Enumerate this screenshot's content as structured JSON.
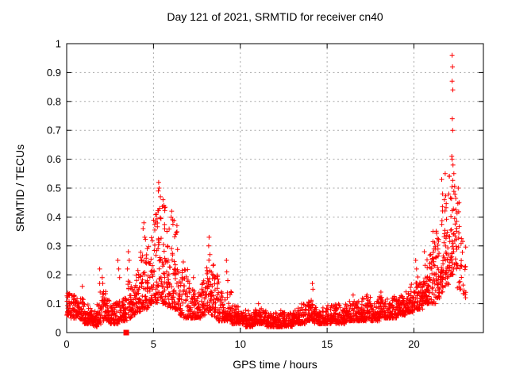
{
  "figure": {
    "background": "#ffffff",
    "border_color": "#000000",
    "grid_color": "#a8a8a8",
    "text_color": "#000000"
  },
  "chart_data": {
    "type": "scatter",
    "title": "Day 121 of 2021, SRMTID for receiver cn40",
    "xlabel": "GPS time / hours",
    "ylabel": "SRMTID / TECUs",
    "xlim": [
      0,
      24
    ],
    "ylim": [
      0,
      1
    ],
    "x_ticks": [
      0,
      5,
      10,
      15,
      20
    ],
    "y_ticks": [
      0,
      0.1,
      0.2,
      0.3,
      0.4,
      0.5,
      0.6,
      0.7,
      0.8,
      0.9,
      1
    ],
    "grid": true,
    "legend": "none",
    "marker": "plus",
    "marker_color": "#ff0000",
    "marker_half_size": 3,
    "seed": 7,
    "band_bins": {
      "comment": "dense scatter band read from plot; each bin = [value_low, value_high, point_count] over bin_hours step",
      "bin_hours": 0.25,
      "start_hour": 0,
      "bins": [
        [
          0.06,
          0.14,
          30
        ],
        [
          0.05,
          0.13,
          30
        ],
        [
          0.05,
          0.12,
          30
        ],
        [
          0.04,
          0.12,
          30
        ],
        [
          0.03,
          0.1,
          30
        ],
        [
          0.03,
          0.09,
          30
        ],
        [
          0.02,
          0.08,
          30
        ],
        [
          0.03,
          0.1,
          30
        ],
        [
          0.04,
          0.15,
          30
        ],
        [
          0.04,
          0.12,
          30
        ],
        [
          0.03,
          0.1,
          30
        ],
        [
          0.03,
          0.11,
          30
        ],
        [
          0.04,
          0.12,
          30
        ],
        [
          0.04,
          0.12,
          30
        ],
        [
          0.05,
          0.18,
          30
        ],
        [
          0.06,
          0.18,
          30
        ],
        [
          0.07,
          0.22,
          32
        ],
        [
          0.08,
          0.3,
          32
        ],
        [
          0.08,
          0.33,
          32
        ],
        [
          0.1,
          0.36,
          32
        ],
        [
          0.1,
          0.42,
          34
        ],
        [
          0.12,
          0.47,
          34
        ],
        [
          0.1,
          0.44,
          34
        ],
        [
          0.08,
          0.38,
          32
        ],
        [
          0.08,
          0.4,
          32
        ],
        [
          0.08,
          0.35,
          32
        ],
        [
          0.06,
          0.28,
          30
        ],
        [
          0.05,
          0.22,
          30
        ],
        [
          0.05,
          0.17,
          30
        ],
        [
          0.05,
          0.15,
          30
        ],
        [
          0.05,
          0.14,
          30
        ],
        [
          0.06,
          0.18,
          30
        ],
        [
          0.07,
          0.27,
          32
        ],
        [
          0.06,
          0.25,
          32
        ],
        [
          0.05,
          0.2,
          30
        ],
        [
          0.04,
          0.15,
          30
        ],
        [
          0.04,
          0.12,
          30
        ],
        [
          0.04,
          0.15,
          30
        ],
        [
          0.03,
          0.1,
          30
        ],
        [
          0.03,
          0.09,
          30
        ],
        [
          0.03,
          0.08,
          30
        ],
        [
          0.02,
          0.08,
          30
        ],
        [
          0.02,
          0.07,
          30
        ],
        [
          0.03,
          0.08,
          30
        ],
        [
          0.03,
          0.09,
          30
        ],
        [
          0.03,
          0.08,
          30
        ],
        [
          0.02,
          0.07,
          30
        ],
        [
          0.02,
          0.07,
          30
        ],
        [
          0.02,
          0.07,
          30
        ],
        [
          0.02,
          0.08,
          30
        ],
        [
          0.02,
          0.07,
          30
        ],
        [
          0.02,
          0.07,
          30
        ],
        [
          0.03,
          0.08,
          30
        ],
        [
          0.03,
          0.09,
          30
        ],
        [
          0.03,
          0.1,
          30
        ],
        [
          0.04,
          0.11,
          30
        ],
        [
          0.04,
          0.12,
          30
        ],
        [
          0.03,
          0.1,
          30
        ],
        [
          0.03,
          0.09,
          30
        ],
        [
          0.03,
          0.09,
          30
        ],
        [
          0.03,
          0.1,
          30
        ],
        [
          0.04,
          0.11,
          30
        ],
        [
          0.03,
          0.1,
          30
        ],
        [
          0.03,
          0.09,
          30
        ],
        [
          0.04,
          0.1,
          30
        ],
        [
          0.04,
          0.11,
          30
        ],
        [
          0.04,
          0.12,
          30
        ],
        [
          0.04,
          0.11,
          30
        ],
        [
          0.04,
          0.12,
          30
        ],
        [
          0.05,
          0.13,
          30
        ],
        [
          0.04,
          0.11,
          30
        ],
        [
          0.04,
          0.11,
          30
        ],
        [
          0.05,
          0.13,
          30
        ],
        [
          0.05,
          0.12,
          30
        ],
        [
          0.05,
          0.12,
          30
        ],
        [
          0.05,
          0.13,
          30
        ],
        [
          0.06,
          0.13,
          30
        ],
        [
          0.06,
          0.14,
          30
        ],
        [
          0.07,
          0.15,
          30
        ],
        [
          0.07,
          0.17,
          30
        ],
        [
          0.08,
          0.2,
          32
        ],
        [
          0.08,
          0.2,
          32
        ],
        [
          0.1,
          0.25,
          32
        ],
        [
          0.1,
          0.28,
          32
        ],
        [
          0.1,
          0.32,
          34
        ],
        [
          0.12,
          0.36,
          34
        ],
        [
          0.14,
          0.44,
          34
        ],
        [
          0.16,
          0.5,
          34
        ],
        [
          0.2,
          0.55,
          34
        ],
        [
          0.22,
          0.52,
          30
        ],
        [
          0.15,
          0.45,
          20
        ],
        [
          0.12,
          0.35,
          12
        ]
      ]
    },
    "notable_points": [
      [
        0.9,
        0.16
      ],
      [
        1.9,
        0.22
      ],
      [
        1.9,
        0.17
      ],
      [
        1.93,
        0.14
      ],
      [
        2.05,
        0.19
      ],
      [
        2.08,
        0.17
      ],
      [
        2.95,
        0.25
      ],
      [
        3.0,
        0.22
      ],
      [
        3.05,
        0.19
      ],
      [
        3.5,
        0.22
      ],
      [
        3.55,
        0.28
      ],
      [
        3.6,
        0.25
      ],
      [
        4.4,
        0.36
      ],
      [
        4.45,
        0.38
      ],
      [
        4.5,
        0.33
      ],
      [
        5.28,
        0.49
      ],
      [
        5.3,
        0.52
      ],
      [
        5.32,
        0.5
      ],
      [
        5.4,
        0.47
      ],
      [
        5.55,
        0.46
      ],
      [
        5.6,
        0.44
      ],
      [
        6.05,
        0.42
      ],
      [
        6.1,
        0.39
      ],
      [
        6.35,
        0.37
      ],
      [
        7.3,
        0.19
      ],
      [
        8.18,
        0.3
      ],
      [
        8.2,
        0.33
      ],
      [
        8.25,
        0.27
      ],
      [
        9.2,
        0.25
      ],
      [
        9.22,
        0.21
      ],
      [
        9.28,
        0.18
      ],
      [
        11.05,
        0.1
      ],
      [
        14.15,
        0.17
      ],
      [
        14.18,
        0.15
      ],
      [
        16.5,
        0.13
      ],
      [
        17.3,
        0.13
      ],
      [
        18.1,
        0.14
      ],
      [
        20.1,
        0.25
      ],
      [
        20.15,
        0.22
      ],
      [
        20.6,
        0.28
      ],
      [
        21.1,
        0.35
      ],
      [
        21.6,
        0.53
      ],
      [
        21.65,
        0.48
      ],
      [
        21.8,
        0.55
      ],
      [
        22.2,
        0.96
      ],
      [
        22.22,
        0.92
      ],
      [
        22.2,
        0.87
      ],
      [
        22.24,
        0.84
      ],
      [
        22.21,
        0.74
      ],
      [
        22.23,
        0.7
      ],
      [
        22.18,
        0.61
      ],
      [
        22.2,
        0.6
      ],
      [
        22.25,
        0.58
      ],
      [
        22.3,
        0.55
      ],
      [
        22.55,
        0.5
      ],
      [
        22.6,
        0.45
      ]
    ],
    "special_point": {
      "x": 3.43,
      "y": 0.0,
      "marker": "filled-square",
      "color": "#ff0000",
      "size": 7
    }
  }
}
